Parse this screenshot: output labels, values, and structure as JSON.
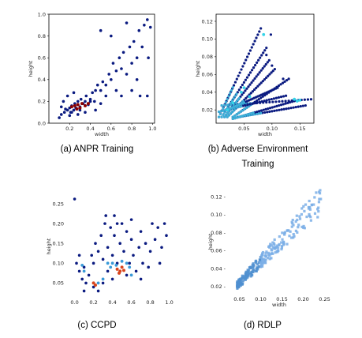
{
  "captions": {
    "a": "(a) ANPR Training",
    "b1": "(b) Adverse Environment",
    "b2": "Training",
    "c": "(c) CCPD",
    "d": "(d) RDLP"
  },
  "colors": {
    "dark": "#0a1a80",
    "hot": "#8b0000",
    "light_blue": "#7aaee6"
  },
  "chart_data": [
    {
      "id": "a",
      "type": "scatter",
      "title": "",
      "xlabel": "width",
      "ylabel": "height",
      "xlim": [
        0.0,
        1.02
      ],
      "ylim": [
        0.0,
        1.0
      ],
      "xticks": [
        0.2,
        0.4,
        0.6,
        0.8,
        1.0
      ],
      "yticks": [
        0.0,
        0.2,
        0.4,
        0.6,
        0.8,
        1.0
      ],
      "xtick_labels": [
        "0.2",
        "0.4",
        "0.6",
        "0.8",
        "1.0"
      ],
      "ytick_labels": [
        "0.0",
        "0.2",
        "0.4",
        "0.6",
        "0.8",
        "1.0"
      ],
      "points": [
        [
          0.1,
          0.05
        ],
        [
          0.12,
          0.08
        ],
        [
          0.15,
          0.1
        ],
        [
          0.16,
          0.13
        ],
        [
          0.18,
          0.12
        ],
        [
          0.2,
          0.14
        ],
        [
          0.21,
          0.1
        ],
        [
          0.22,
          0.16
        ],
        [
          0.24,
          0.12
        ],
        [
          0.25,
          0.18
        ],
        [
          0.26,
          0.14
        ],
        [
          0.28,
          0.2
        ],
        [
          0.3,
          0.15
        ],
        [
          0.31,
          0.22
        ],
        [
          0.33,
          0.18
        ],
        [
          0.35,
          0.2
        ],
        [
          0.36,
          0.25
        ],
        [
          0.38,
          0.17
        ],
        [
          0.4,
          0.22
        ],
        [
          0.42,
          0.28
        ],
        [
          0.44,
          0.2
        ],
        [
          0.45,
          0.3
        ],
        [
          0.47,
          0.35
        ],
        [
          0.5,
          0.3
        ],
        [
          0.52,
          0.38
        ],
        [
          0.55,
          0.35
        ],
        [
          0.58,
          0.45
        ],
        [
          0.6,
          0.4
        ],
        [
          0.62,
          0.55
        ],
        [
          0.65,
          0.48
        ],
        [
          0.68,
          0.6
        ],
        [
          0.7,
          0.5
        ],
        [
          0.72,
          0.65
        ],
        [
          0.75,
          0.45
        ],
        [
          0.78,
          0.7
        ],
        [
          0.8,
          0.55
        ],
        [
          0.82,
          0.75
        ],
        [
          0.85,
          0.6
        ],
        [
          0.87,
          0.85
        ],
        [
          0.9,
          0.7
        ],
        [
          0.92,
          0.9
        ],
        [
          0.95,
          0.95
        ],
        [
          0.98,
          0.88
        ],
        [
          0.96,
          0.6
        ],
        [
          0.88,
          0.25
        ],
        [
          0.8,
          0.3
        ],
        [
          0.7,
          0.25
        ],
        [
          0.65,
          0.3
        ],
        [
          0.55,
          0.25
        ],
        [
          0.5,
          0.18
        ],
        [
          0.45,
          0.12
        ],
        [
          0.35,
          0.1
        ],
        [
          0.28,
          0.08
        ],
        [
          0.2,
          0.07
        ],
        [
          0.14,
          0.2
        ],
        [
          0.18,
          0.25
        ],
        [
          0.24,
          0.28
        ],
        [
          0.12,
          0.15
        ],
        [
          0.5,
          0.85
        ],
        [
          0.95,
          0.25
        ],
        [
          0.4,
          0.2
        ],
        [
          0.6,
          0.8
        ],
        [
          0.75,
          0.92
        ],
        [
          0.85,
          0.4
        ],
        [
          0.22,
          0.1
        ],
        [
          0.3,
          0.12
        ]
      ],
      "hot_points": [
        [
          0.22,
          0.15
        ],
        [
          0.25,
          0.16
        ],
        [
          0.28,
          0.17
        ],
        [
          0.32,
          0.18
        ],
        [
          0.35,
          0.16
        ],
        [
          0.38,
          0.18
        ],
        [
          0.3,
          0.14
        ],
        [
          0.27,
          0.13
        ]
      ]
    },
    {
      "id": "b",
      "type": "scatter",
      "title": "",
      "xlabel": "width",
      "ylabel": "height",
      "xlim": [
        0.0,
        0.175
      ],
      "ylim": [
        0.005,
        0.128
      ],
      "xticks": [
        0.05,
        0.1,
        0.15
      ],
      "yticks": [
        0.02,
        0.04,
        0.06,
        0.08,
        0.1,
        0.12
      ],
      "xtick_labels": [
        "0.05",
        "0.10",
        "0.15"
      ],
      "ytick_labels": [
        "0.02",
        "0.04",
        "0.06",
        "0.08",
        "0.10",
        "0.12"
      ],
      "streaks": [
        [
          0.005,
          0.012,
          0.08,
          0.112
        ],
        [
          0.01,
          0.012,
          0.09,
          0.09
        ],
        [
          0.015,
          0.012,
          0.095,
          0.076
        ],
        [
          0.02,
          0.012,
          0.105,
          0.066
        ],
        [
          0.03,
          0.012,
          0.13,
          0.055
        ],
        [
          0.01,
          0.025,
          0.17,
          0.032
        ],
        [
          0.005,
          0.018,
          0.125,
          0.036
        ],
        [
          0.04,
          0.012,
          0.16,
          0.025
        ],
        [
          0.03,
          0.01,
          0.14,
          0.03
        ],
        [
          0.02,
          0.02,
          0.11,
          0.045
        ]
      ],
      "outliers": [
        [
          0.12,
          0.055
        ],
        [
          0.1,
          0.07
        ],
        [
          0.09,
          0.082
        ],
        [
          0.098,
          0.105
        ]
      ],
      "cyan_points": [
        [
          0.045,
          0.04
        ],
        [
          0.05,
          0.045
        ],
        [
          0.06,
          0.035
        ],
        [
          0.14,
          0.032
        ],
        [
          0.145,
          0.03
        ],
        [
          0.15,
          0.031
        ],
        [
          0.03,
          0.028
        ],
        [
          0.02,
          0.02
        ],
        [
          0.085,
          0.105
        ]
      ]
    },
    {
      "id": "c",
      "type": "scatter",
      "title": "",
      "xlabel": "",
      "ylabel": "height",
      "xlim": [
        -0.08,
        1.02
      ],
      "ylim": [
        0.015,
        0.27
      ],
      "xticks": [
        0.0,
        0.2,
        0.4,
        0.6,
        0.8,
        1.0
      ],
      "yticks": [
        0.05,
        0.1,
        0.15,
        0.2,
        0.25
      ],
      "xtick_labels": [
        "0.0",
        "0.2",
        "0.4",
        "0.6",
        "0.8",
        "1.0"
      ],
      "ytick_labels": [
        "0.05",
        "0.10",
        "0.15",
        "0.20",
        "0.25"
      ],
      "points": [
        [
          0.0,
          0.262
        ],
        [
          0.02,
          0.1
        ],
        [
          0.05,
          0.08
        ],
        [
          0.08,
          0.06
        ],
        [
          0.1,
          0.09
        ],
        [
          0.12,
          0.05
        ],
        [
          0.15,
          0.07
        ],
        [
          0.18,
          0.12
        ],
        [
          0.2,
          0.1
        ],
        [
          0.22,
          0.15
        ],
        [
          0.25,
          0.13
        ],
        [
          0.28,
          0.17
        ],
        [
          0.3,
          0.11
        ],
        [
          0.32,
          0.2
        ],
        [
          0.35,
          0.14
        ],
        [
          0.38,
          0.19
        ],
        [
          0.4,
          0.12
        ],
        [
          0.42,
          0.17
        ],
        [
          0.45,
          0.1
        ],
        [
          0.48,
          0.15
        ],
        [
          0.5,
          0.2
        ],
        [
          0.52,
          0.13
        ],
        [
          0.55,
          0.18
        ],
        [
          0.58,
          0.1
        ],
        [
          0.6,
          0.16
        ],
        [
          0.62,
          0.12
        ],
        [
          0.65,
          0.08
        ],
        [
          0.68,
          0.14
        ],
        [
          0.7,
          0.18
        ],
        [
          0.72,
          0.1
        ],
        [
          0.75,
          0.15
        ],
        [
          0.78,
          0.09
        ],
        [
          0.8,
          0.13
        ],
        [
          0.82,
          0.2
        ],
        [
          0.85,
          0.16
        ],
        [
          0.88,
          0.19
        ],
        [
          0.9,
          0.1
        ],
        [
          0.92,
          0.14
        ],
        [
          0.95,
          0.2
        ],
        [
          0.97,
          0.17
        ],
        [
          0.3,
          0.05
        ],
        [
          0.25,
          0.03
        ],
        [
          0.2,
          0.04
        ],
        [
          0.1,
          0.03
        ],
        [
          0.05,
          0.12
        ],
        [
          0.33,
          0.22
        ],
        [
          0.45,
          0.2
        ],
        [
          0.6,
          0.21
        ],
        [
          0.7,
          0.06
        ],
        [
          0.55,
          0.07
        ],
        [
          0.4,
          0.06
        ],
        [
          0.35,
          0.08
        ],
        [
          0.42,
          0.22
        ]
      ],
      "hot_points": [
        [
          0.45,
          0.085
        ],
        [
          0.48,
          0.08
        ],
        [
          0.5,
          0.09
        ],
        [
          0.47,
          0.075
        ],
        [
          0.52,
          0.082
        ],
        [
          0.22,
          0.045
        ],
        [
          0.2,
          0.05
        ]
      ],
      "mid_points": [
        [
          0.4,
          0.1
        ],
        [
          0.55,
          0.1
        ],
        [
          0.38,
          0.09
        ],
        [
          0.58,
          0.09
        ],
        [
          0.3,
          0.06
        ],
        [
          0.25,
          0.05
        ],
        [
          0.6,
          0.07
        ],
        [
          0.44,
          0.095
        ],
        [
          0.5,
          0.105
        ],
        [
          0.35,
          0.1
        ],
        [
          0.08,
          0.095
        ],
        [
          0.1,
          0.08
        ]
      ]
    },
    {
      "id": "d",
      "type": "scatter",
      "title": "",
      "xlabel": "width",
      "ylabel": "height",
      "xlim": [
        0.025,
        0.262
      ],
      "ylim": [
        0.012,
        0.128
      ],
      "xticks": [
        0.05,
        0.1,
        0.15,
        0.2,
        0.25
      ],
      "yticks": [
        0.02,
        0.04,
        0.06,
        0.08,
        0.1,
        0.12
      ],
      "xtick_labels": [
        "0.05",
        "0.10",
        "0.15",
        "0.20",
        "0.25"
      ],
      "ytick_labels": [
        "0.02 -",
        "0.04 -",
        "0.06 -",
        "0.08 -",
        "0.10 -",
        "0.12 -"
      ],
      "trend": {
        "x0": 0.045,
        "x1": 0.25,
        "slope": 0.48,
        "intercept": 0.0
      }
    }
  ]
}
